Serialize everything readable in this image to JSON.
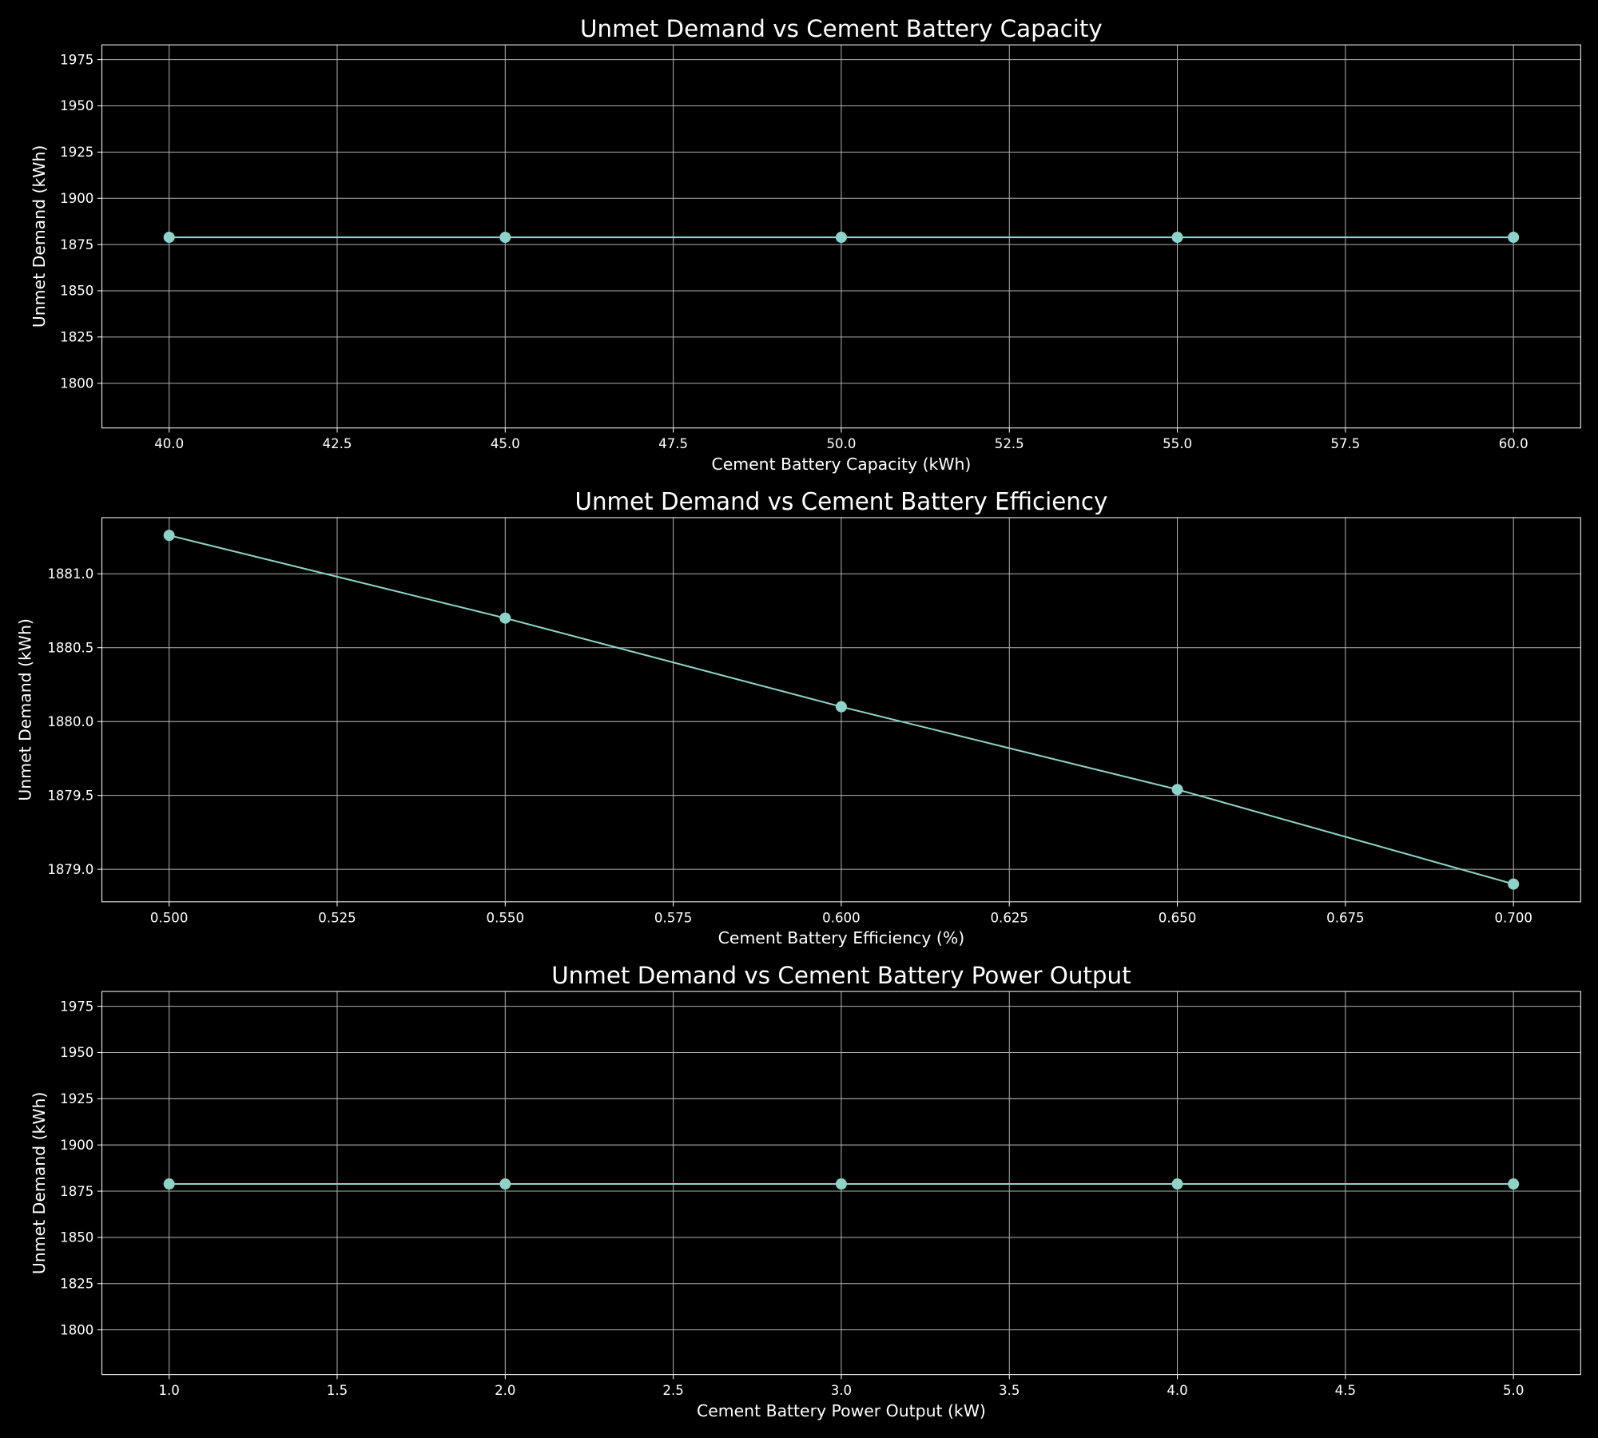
{
  "chart_data": [
    {
      "type": "line",
      "title": "Unmet Demand vs Cement Battery Capacity",
      "xlabel": "Cement Battery Capacity (kWh)",
      "ylabel": "Unmet Demand (kWh)",
      "x": [
        40,
        45,
        50,
        55,
        60
      ],
      "values": [
        1878.9,
        1878.9,
        1878.9,
        1878.9,
        1878.9
      ],
      "color": "#8dd3c7",
      "xlim": [
        39,
        61
      ],
      "ylim": [
        1775.8,
        1983
      ],
      "xticks": [
        {
          "value": 40,
          "label": "40.0"
        },
        42.5,
        {
          "value": 45,
          "label": "45.0"
        },
        47.5,
        {
          "value": 50,
          "label": "50.0"
        },
        52.5,
        {
          "value": 55,
          "label": "55.0"
        },
        57.5,
        {
          "value": 60,
          "label": "60.0"
        }
      ],
      "yticks": [
        1800,
        1825,
        1850,
        1875,
        1900,
        1925,
        1950,
        1975
      ],
      "grid": true
    },
    {
      "type": "line",
      "title": "Unmet Demand vs Cement Battery Efficiency",
      "xlabel": "Cement Battery Efficiency (%)",
      "ylabel": "Unmet Demand (kWh)",
      "x": [
        0.5,
        0.55,
        0.6,
        0.65,
        0.7
      ],
      "values": [
        1881.26,
        1880.7,
        1880.1,
        1879.54,
        1878.9
      ],
      "color": "#8dd3c7",
      "xlim": [
        0.49,
        0.71
      ],
      "ylim": [
        1878.78,
        1881.38
      ],
      "xticks": [
        {
          "value": 0.5,
          "label": "0.500"
        },
        0.525,
        {
          "value": 0.55,
          "label": "0.550"
        },
        0.575,
        {
          "value": 0.6,
          "label": "0.600"
        },
        0.625,
        {
          "value": 0.65,
          "label": "0.650"
        },
        0.675,
        {
          "value": 0.7,
          "label": "0.700"
        }
      ],
      "yticks": [
        {
          "value": 1879,
          "label": "1879.0"
        },
        1879.5,
        {
          "value": 1880,
          "label": "1880.0"
        },
        1880.5,
        {
          "value": 1881,
          "label": "1881.0"
        }
      ],
      "grid": true
    },
    {
      "type": "line",
      "title": "Unmet Demand vs Cement Battery Power Output",
      "xlabel": "Cement Battery Power Output (kW)",
      "ylabel": "Unmet Demand (kWh)",
      "x": [
        1,
        2,
        3,
        4,
        5
      ],
      "values": [
        1878.9,
        1878.9,
        1878.9,
        1878.9,
        1878.9
      ],
      "color": "#8dd3c7",
      "xlim": [
        0.8,
        5.2
      ],
      "ylim": [
        1775.8,
        1983
      ],
      "xticks": [
        {
          "value": 1,
          "label": "1.0"
        },
        1.5,
        {
          "value": 2,
          "label": "2.0"
        },
        2.5,
        {
          "value": 3,
          "label": "3.0"
        },
        3.5,
        {
          "value": 4,
          "label": "4.0"
        },
        4.5,
        {
          "value": 5,
          "label": "5.0"
        }
      ],
      "yticks": [
        1800,
        1825,
        1850,
        1875,
        1900,
        1925,
        1950,
        1975
      ],
      "grid": true
    }
  ]
}
